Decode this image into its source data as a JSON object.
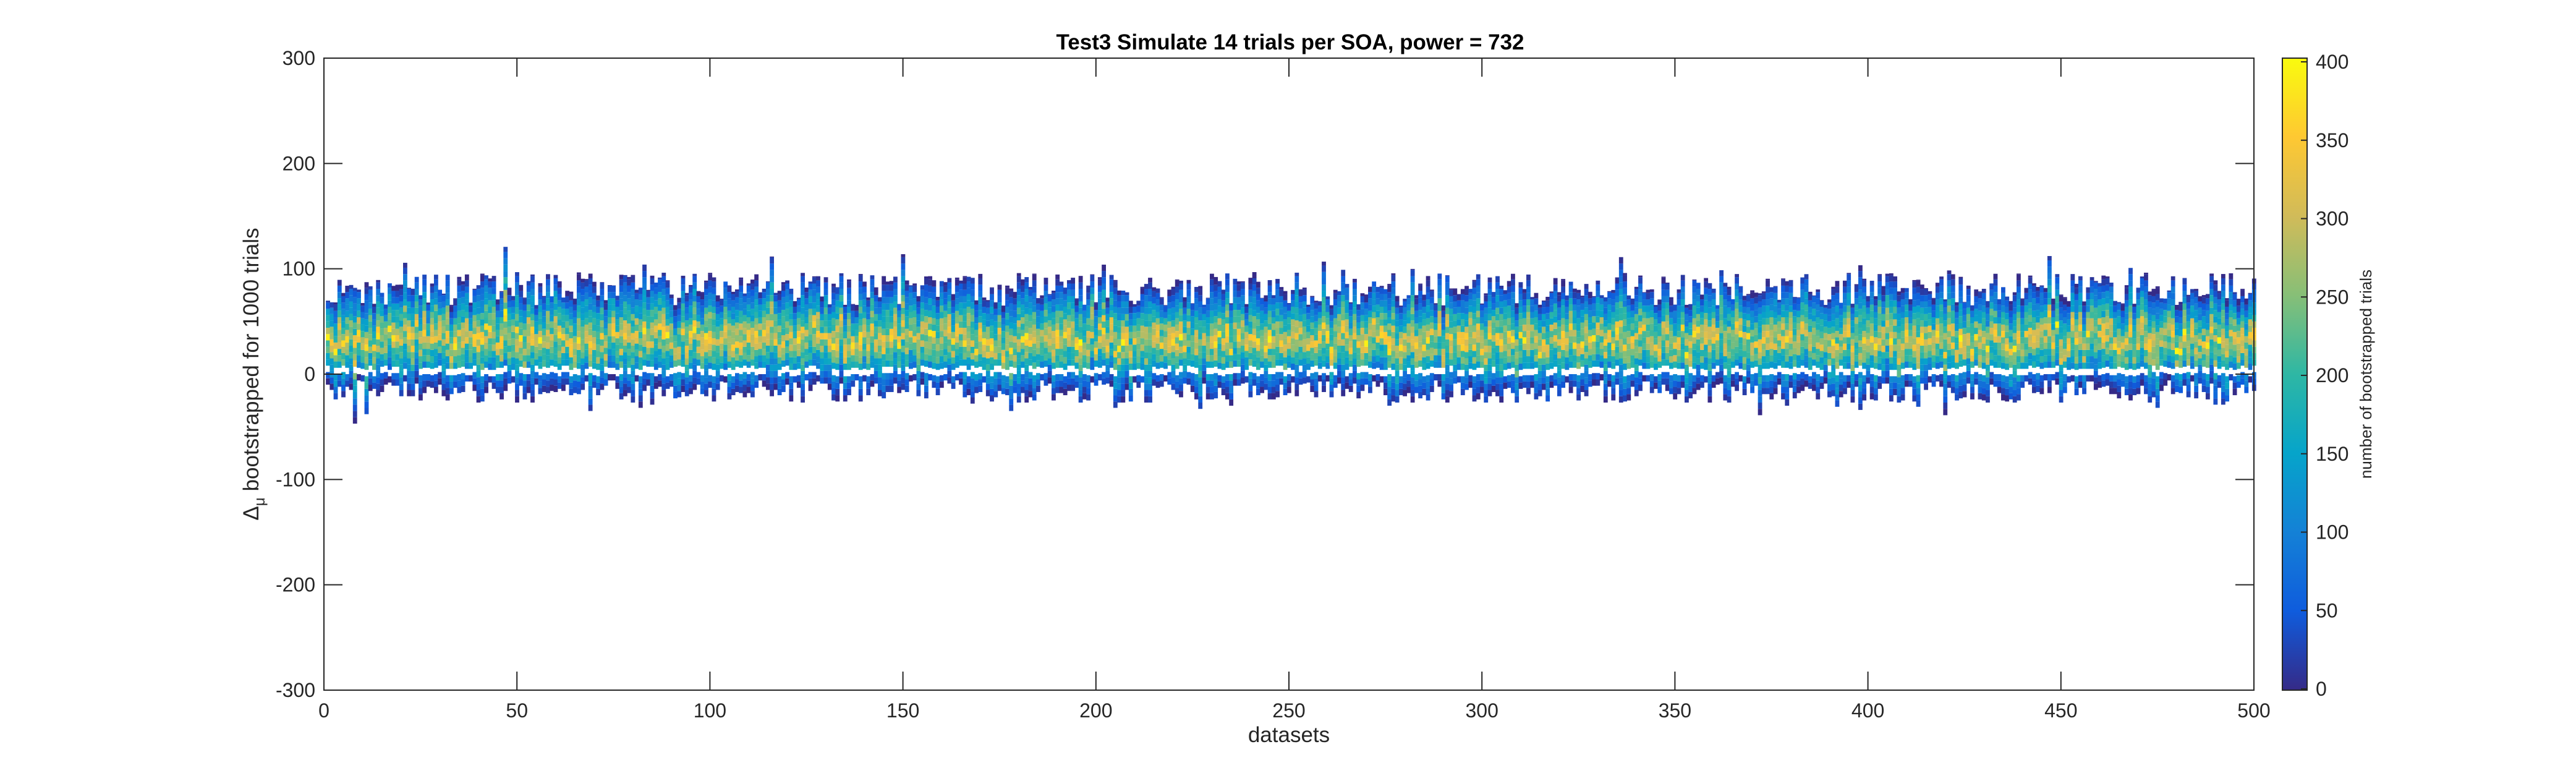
{
  "chart_data": {
    "type": "heatmap",
    "title": "Test3 Simulate 14 trials per SOA, power = 732",
    "xlabel": "datasets",
    "ylabel": "bootstrapped for 1000 trials",
    "ylabel_symbol": "Δ",
    "ylabel_subscript": "μ",
    "xlim": [
      0,
      500
    ],
    "ylim": [
      -300,
      300
    ],
    "x_ticks": [
      0,
      50,
      100,
      150,
      200,
      250,
      300,
      350,
      400,
      450,
      500
    ],
    "y_ticks": [
      300,
      200,
      100,
      0,
      -100,
      -200,
      -300
    ],
    "n_datasets": 500,
    "typical_column_range": [
      -25,
      85
    ],
    "column_range_extremes": [
      -52,
      122
    ],
    "zero_gap_near": 0,
    "colorbar": {
      "label": "number of bootstrapped trials",
      "range": [
        0,
        400
      ],
      "ticks": [
        0,
        50,
        100,
        150,
        200,
        250,
        300,
        350,
        400
      ],
      "colormap": "parula",
      "stops": [
        "#352a87",
        "#0f5cdd",
        "#1481d6",
        "#06a4ca",
        "#2eb7a4",
        "#87bf77",
        "#d1bb59",
        "#fec832",
        "#f9fb0e"
      ]
    },
    "grid": false,
    "legend": "none"
  }
}
